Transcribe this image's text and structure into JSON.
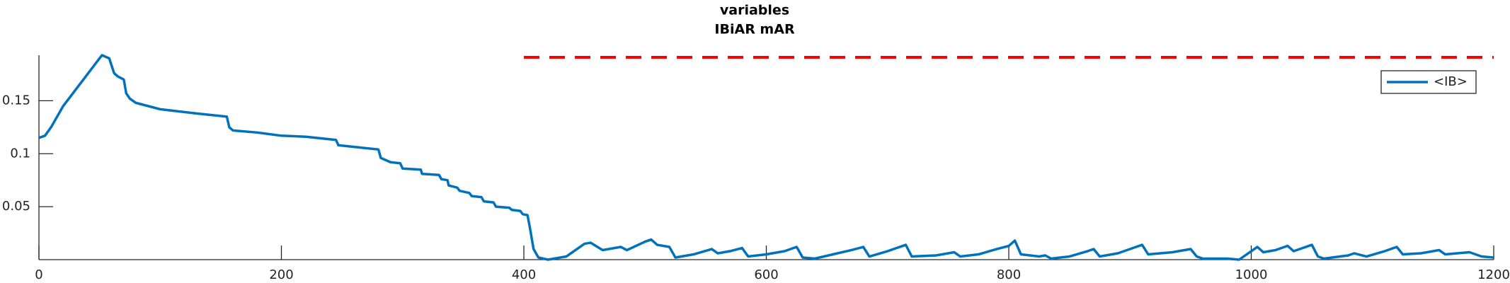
{
  "chart_data": {
    "type": "line",
    "title": [
      "variables",
      "IBiAR mAR"
    ],
    "xlim": [
      0,
      1200
    ],
    "ylim": [
      0,
      0.193
    ],
    "xticks": [
      0,
      200,
      400,
      600,
      800,
      1000,
      1200
    ],
    "yticks": [
      0.05,
      0.1,
      0.15
    ],
    "legend": "northeast",
    "series": [
      {
        "name": "<IB>",
        "color": "#0072bd",
        "x": [
          0,
          5,
          10,
          20,
          30,
          40,
          50,
          52,
          58,
          60,
          62,
          65,
          70,
          72,
          75,
          80,
          100,
          130,
          155,
          157,
          160,
          180,
          200,
          220,
          245,
          247,
          280,
          282,
          290,
          298,
          300,
          315,
          316,
          330,
          332,
          337,
          338,
          345,
          347,
          355,
          357,
          365,
          367,
          375,
          377,
          388,
          390,
          397,
          399,
          403,
          405,
          408,
          412,
          420,
          435,
          450,
          455,
          465,
          475,
          480,
          485,
          500,
          505,
          510,
          520,
          525,
          540,
          555,
          560,
          570,
          580,
          585,
          600,
          615,
          625,
          630,
          640,
          655,
          670,
          680,
          685,
          700,
          715,
          720,
          740,
          755,
          760,
          775,
          790,
          800,
          805,
          810,
          825,
          830,
          835,
          850,
          865,
          870,
          875,
          890,
          905,
          910,
          915,
          935,
          950,
          955,
          960,
          980,
          990,
          1000,
          1005,
          1010,
          1020,
          1030,
          1035,
          1040,
          1050,
          1055,
          1060,
          1080,
          1085,
          1095,
          1110,
          1120,
          1125,
          1140,
          1155,
          1160,
          1180,
          1190,
          1200
        ],
        "values": [
          0.115,
          0.117,
          0.125,
          0.145,
          0.16,
          0.175,
          0.19,
          0.193,
          0.19,
          0.183,
          0.176,
          0.173,
          0.17,
          0.157,
          0.152,
          0.148,
          0.142,
          0.138,
          0.135,
          0.125,
          0.122,
          0.12,
          0.117,
          0.116,
          0.113,
          0.108,
          0.104,
          0.096,
          0.092,
          0.091,
          0.086,
          0.085,
          0.081,
          0.08,
          0.076,
          0.075,
          0.07,
          0.068,
          0.065,
          0.063,
          0.06,
          0.059,
          0.055,
          0.054,
          0.05,
          0.049,
          0.047,
          0.046,
          0.043,
          0.042,
          0.03,
          0.01,
          0.002,
          0.0,
          0.003,
          0.015,
          0.016,
          0.009,
          0.011,
          0.012,
          0.009,
          0.017,
          0.019,
          0.014,
          0.012,
          0.002,
          0.005,
          0.01,
          0.006,
          0.008,
          0.011,
          0.003,
          0.005,
          0.008,
          0.012,
          0.002,
          0.001,
          0.005,
          0.009,
          0.012,
          0.003,
          0.008,
          0.014,
          0.003,
          0.004,
          0.007,
          0.003,
          0.005,
          0.01,
          0.013,
          0.018,
          0.005,
          0.003,
          0.004,
          0.001,
          0.003,
          0.008,
          0.01,
          0.003,
          0.006,
          0.012,
          0.014,
          0.005,
          0.007,
          0.01,
          0.003,
          0.001,
          0.001,
          0.0,
          0.008,
          0.012,
          0.007,
          0.009,
          0.013,
          0.008,
          0.01,
          0.014,
          0.003,
          0.001,
          0.004,
          0.006,
          0.003,
          0.008,
          0.012,
          0.005,
          0.006,
          0.009,
          0.005,
          0.007,
          0.003,
          0.002
        ]
      },
      {
        "color": "#ff0000",
        "dashed": true,
        "x": [
          400,
          1200
        ],
        "values": [
          0.191,
          0.191
        ]
      }
    ]
  }
}
